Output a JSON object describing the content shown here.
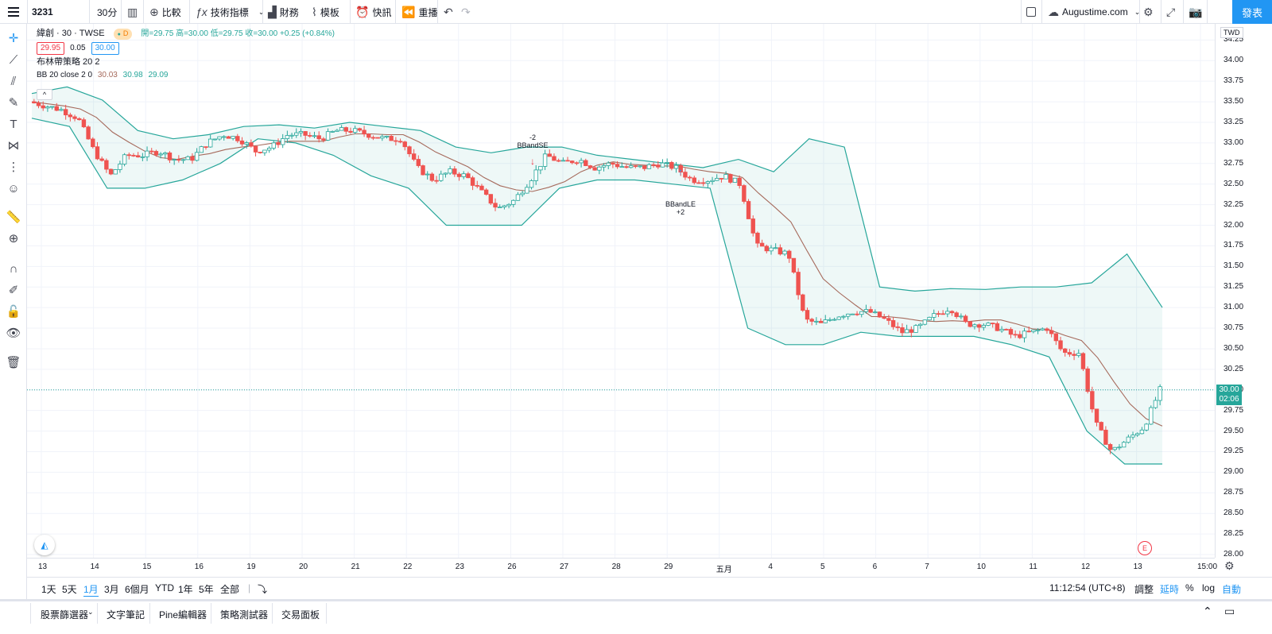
{
  "topbar": {
    "symbol": "3231",
    "interval": "30分",
    "compare": "比較",
    "indicators": "技術指標",
    "financials": "財務",
    "templates": "模板",
    "alerts": "快訊",
    "replay": "重播",
    "layout_name": "Augustime.com",
    "publish": "發表"
  },
  "legend": {
    "title": "緯創 · 30 · TWSE",
    "badge": "D",
    "ohlc": "開=29.75 高=30.00 低=29.75 收=30.00 +0.25 (+0.84%)",
    "bid": "29.95",
    "spread": "0.05",
    "ask": "30.00",
    "strategy": "布林帶策略 20 2",
    "bb_label": "BB 20 close 2 0",
    "bb_basis": "30.03",
    "bb_upper": "30.98",
    "bb_lower": "29.09",
    "collapse": "^"
  },
  "signals": {
    "short_qty": "-2",
    "short_name": "BBandSE",
    "long_name": "BBandLE",
    "long_qty": "+2"
  },
  "price_axis": {
    "currency": "TWD",
    "ticks": [
      "34.25",
      "34.00",
      "33.75",
      "33.50",
      "33.25",
      "33.00",
      "32.75",
      "32.50",
      "32.25",
      "32.00",
      "31.75",
      "31.50",
      "31.25",
      "31.00",
      "30.75",
      "30.50",
      "30.25",
      "30.00",
      "29.75",
      "29.50",
      "29.25",
      "29.00",
      "28.75",
      "28.50",
      "28.25",
      "28.00"
    ],
    "last_price": "30.00",
    "countdown": "02:06"
  },
  "time_axis": {
    "ticks": [
      "13",
      "14",
      "15",
      "16",
      "19",
      "20",
      "21",
      "22",
      "23",
      "26",
      "27",
      "28",
      "29",
      "五月",
      "4",
      "5",
      "6",
      "7",
      "10",
      "11",
      "12",
      "13",
      "15:00"
    ]
  },
  "rangebar": {
    "ranges": [
      "1天",
      "5天",
      "1月",
      "3月",
      "6個月",
      "YTD",
      "1年",
      "5年",
      "全部"
    ],
    "active": "1月",
    "time": "11:12:54 (UTC+8)",
    "adjust": "調整",
    "extended": "延時",
    "percent": "%",
    "log": "log",
    "auto": "自動"
  },
  "bottom": {
    "tabs": [
      "股票篩選器",
      "文字筆記",
      "Pine編輯器",
      "策略測試器",
      "交易面板"
    ]
  },
  "events": {
    "earnings": "E"
  },
  "colors": {
    "up": "#26a69a",
    "down": "#ef5350",
    "band": "#26a69a",
    "basis": "#a66a5c",
    "accent": "#2196f3"
  },
  "chart_data": {
    "type": "candlestick",
    "series_name": "緯創",
    "interval": "30分",
    "ylim": [
      28.0,
      34.35
    ],
    "x_ticks": [
      "13",
      "14",
      "15",
      "16",
      "19",
      "20",
      "21",
      "22",
      "23",
      "26",
      "27",
      "28",
      "29",
      "五月",
      "4",
      "5",
      "6",
      "7",
      "10",
      "11",
      "12",
      "13"
    ],
    "close_path": [
      33.5,
      33.45,
      33.4,
      33.3,
      32.9,
      32.6,
      32.85,
      32.85,
      32.9,
      32.8,
      32.8,
      33.0,
      33.1,
      33.05,
      32.9,
      32.95,
      33.1,
      33.1,
      33.05,
      33.15,
      33.15,
      33.1,
      33.05,
      33.05,
      32.7,
      32.55,
      32.65,
      32.6,
      32.4,
      32.2,
      32.3,
      32.55,
      32.85,
      32.75,
      32.8,
      32.7,
      32.75,
      32.7,
      32.7,
      32.75,
      32.7,
      32.55,
      32.55,
      32.6,
      32.5,
      31.75,
      31.7,
      31.65,
      30.85,
      30.8,
      30.9,
      30.95,
      30.95,
      30.85,
      30.7,
      30.75,
      30.9,
      31.0,
      30.8,
      30.8,
      30.75,
      30.65,
      30.7,
      30.75,
      30.45,
      30.45,
      29.6,
      29.25,
      29.4,
      29.55,
      30.0
    ],
    "bb_upper_path": [
      33.6,
      33.68,
      33.52,
      33.15,
      33.05,
      33.1,
      33.2,
      33.22,
      33.18,
      33.25,
      33.2,
      33.15,
      32.95,
      32.88,
      32.95,
      32.95,
      32.85,
      32.8,
      32.75,
      32.7,
      32.8,
      32.65,
      33.05,
      32.95,
      31.25,
      31.2,
      31.23,
      31.22,
      31.25,
      31.25,
      31.3,
      31.65,
      31.0
    ],
    "bb_lower_path": [
      33.3,
      33.2,
      32.45,
      32.45,
      32.55,
      32.75,
      33.05,
      33.0,
      32.85,
      32.6,
      32.45,
      32.0,
      32.0,
      32.0,
      32.45,
      32.55,
      32.55,
      32.5,
      32.45,
      30.75,
      30.55,
      30.55,
      30.7,
      30.65,
      30.65,
      30.65,
      30.55,
      30.4,
      29.5,
      29.1,
      29.1
    ]
  }
}
